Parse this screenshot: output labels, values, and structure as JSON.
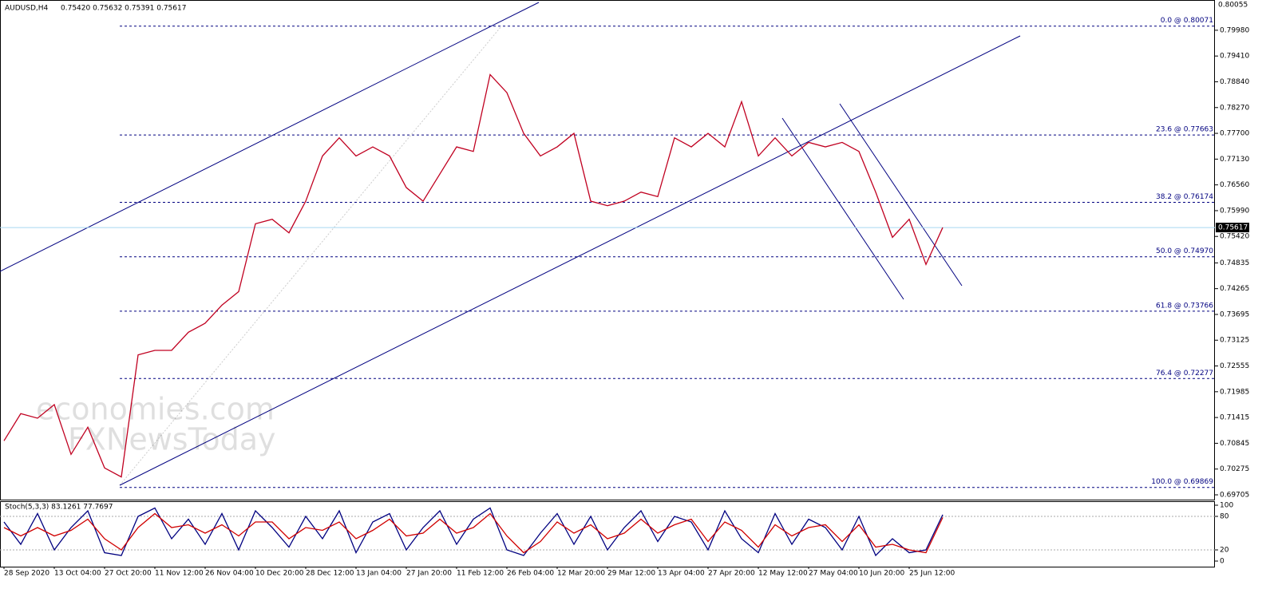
{
  "header": {
    "symbol": "AUDUSD,H4",
    "ohlc": "0.75420 0.75632 0.75391 0.75617"
  },
  "watermark": [
    "economies.com",
    "FXNewsToday"
  ],
  "ymax_label": "0.80055",
  "chart_data": [
    {
      "type": "line",
      "categories": [
        "28 Sep 2020",
        null,
        null,
        "13 Oct 04:00",
        null,
        null,
        "27 Oct 20:00",
        null,
        null,
        "11 Nov 12:00",
        null,
        null,
        "26 Nov 04:00",
        null,
        null,
        "10 Dec 20:00",
        null,
        null,
        "28 Dec 12:00",
        null,
        null,
        "13 Jan 04:00",
        null,
        null,
        "27 Jan 20:00",
        null,
        null,
        "11 Feb 12:00",
        null,
        null,
        "26 Feb 04:00",
        null,
        null,
        "12 Mar 20:00",
        null,
        null,
        "29 Mar 12:00",
        null,
        null,
        "13 Apr 04:00",
        null,
        null,
        "27 Apr 20:00",
        null,
        null,
        "12 May 12:00",
        null,
        null,
        "27 May 04:00",
        null,
        null,
        "10 Jun 20:00",
        null,
        null,
        "25 Jun 12:00",
        null,
        null
      ],
      "series": [
        {
          "color": "#c00020",
          "values": [
            0.709,
            0.715,
            0.714,
            0.717,
            0.706,
            0.712,
            0.703,
            0.701,
            0.728,
            0.729,
            0.729,
            0.733,
            0.735,
            0.739,
            0.742,
            0.757,
            0.758,
            0.755,
            0.762,
            0.772,
            0.776,
            0.772,
            0.774,
            0.772,
            0.765,
            0.762,
            0.768,
            0.774,
            0.773,
            0.79,
            0.786,
            0.777,
            0.772,
            0.774,
            0.777,
            0.762,
            0.761,
            0.762,
            0.764,
            0.763,
            0.776,
            0.774,
            0.777,
            0.774,
            0.784,
            0.772,
            0.776,
            0.772,
            0.775,
            0.774,
            0.775,
            0.773,
            0.764,
            0.754,
            0.758,
            0.748,
            0.75617
          ]
        }
      ],
      "ylim": [
        0.69599,
        0.80649
      ],
      "yticks": [
        {
          "value": 0.7998,
          "label": "0.79980"
        },
        {
          "value": 0.7941,
          "label": "0.79410"
        },
        {
          "value": 0.7884,
          "label": "0.78840"
        },
        {
          "value": 0.7827,
          "label": "0.78270"
        },
        {
          "value": 0.777,
          "label": "0.77700"
        },
        {
          "value": 0.7713,
          "label": "0.77130"
        },
        {
          "value": 0.7656,
          "label": "0.76560"
        },
        {
          "value": 0.7599,
          "label": "0.75990"
        },
        {
          "value": 0.7542,
          "label": "0.75420"
        },
        {
          "value": 0.74835,
          "label": "0.74835"
        },
        {
          "value": 0.74265,
          "label": "0.74265"
        },
        {
          "value": 0.73695,
          "label": "0.73695"
        },
        {
          "value": 0.73125,
          "label": "0.73125"
        },
        {
          "value": 0.72555,
          "label": "0.72555"
        },
        {
          "value": 0.71985,
          "label": "0.71985"
        },
        {
          "value": 0.71415,
          "label": "0.71415"
        },
        {
          "value": 0.70845,
          "label": "0.70845"
        },
        {
          "value": 0.70275,
          "label": "0.70275"
        },
        {
          "value": 0.69705,
          "label": "0.69705"
        }
      ],
      "current_price": 0.75617,
      "fib_levels": [
        {
          "label": "0.0 @ 0.80071",
          "value": 0.80071
        },
        {
          "label": "23.6 @ 0.77663",
          "value": 0.77663
        },
        {
          "label": "38.2 @ 0.76174",
          "value": 0.76174
        },
        {
          "label": "50.0 @ 0.74970",
          "value": 0.7497
        },
        {
          "label": "61.8 @ 0.73766",
          "value": 0.73766
        },
        {
          "label": "76.4 @ 0.72277",
          "value": 0.72277
        },
        {
          "label": "100.0 @ 0.69869",
          "value": 0.69869
        }
      ]
    },
    {
      "type": "line",
      "title": "Stoch(5,3,3) 83.1261 77.7697",
      "series": [
        {
          "color": "#000080",
          "values": [
            70,
            30,
            85,
            20,
            60,
            90,
            15,
            10,
            80,
            95,
            40,
            75,
            30,
            85,
            20,
            90,
            60,
            25,
            80,
            40,
            90,
            15,
            70,
            85,
            20,
            60,
            90,
            30,
            75,
            95,
            20,
            10,
            50,
            85,
            30,
            80,
            20,
            60,
            90,
            35,
            80,
            70,
            20,
            90,
            40,
            15,
            85,
            30,
            75,
            60,
            20,
            80,
            10,
            40,
            15,
            20,
            83
          ]
        },
        {
          "color": "#d00000",
          "values": [
            60,
            45,
            60,
            45,
            55,
            75,
            40,
            20,
            60,
            85,
            60,
            65,
            50,
            65,
            45,
            70,
            70,
            40,
            60,
            55,
            70,
            40,
            55,
            75,
            45,
            50,
            75,
            50,
            60,
            85,
            45,
            15,
            35,
            70,
            50,
            65,
            40,
            50,
            75,
            50,
            65,
            75,
            35,
            70,
            55,
            25,
            65,
            45,
            60,
            65,
            35,
            65,
            25,
            30,
            20,
            15,
            78
          ]
        }
      ],
      "ylim": [
        0,
        100
      ],
      "yticks": [
        0,
        20,
        80,
        100
      ],
      "levels": [
        20,
        80
      ]
    }
  ]
}
